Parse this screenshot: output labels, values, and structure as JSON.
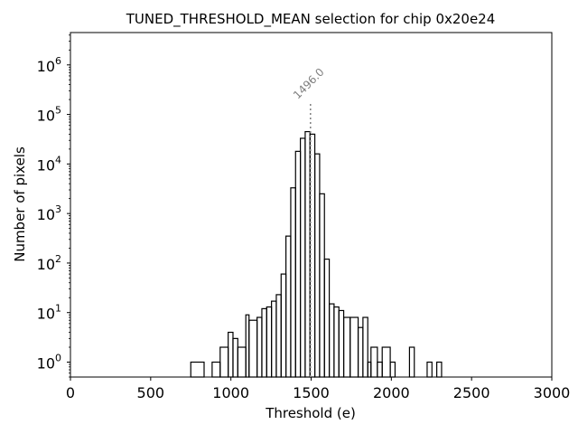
{
  "chart_data": {
    "type": "histogram",
    "title": "TUNED_THRESHOLD_MEAN selection for chip 0x20e24",
    "xlabel": "Threshold (e)",
    "ylabel": "Number of pixels",
    "xlim": [
      0,
      3000
    ],
    "ylim": [
      0.5,
      4500000
    ],
    "yscale": "log",
    "grid": false,
    "x_ticks": [
      0,
      500,
      1000,
      1500,
      2000,
      2500,
      3000
    ],
    "x_tick_labels": [
      "0",
      "500",
      "1000",
      "1500",
      "2000",
      "2500",
      "3000"
    ],
    "y_ticks": [
      1,
      10,
      100,
      1000,
      10000,
      100000,
      1000000
    ],
    "y_tick_labels": [
      {
        "base": "10",
        "exp": "0"
      },
      {
        "base": "10",
        "exp": "1"
      },
      {
        "base": "10",
        "exp": "2"
      },
      {
        "base": "10",
        "exp": "3"
      },
      {
        "base": "10",
        "exp": "4"
      },
      {
        "base": "10",
        "exp": "5"
      },
      {
        "base": "10",
        "exp": "6"
      }
    ],
    "bins": [
      {
        "x0": 750,
        "x1": 833,
        "count": 1
      },
      {
        "x0": 883,
        "x1": 933,
        "count": 1
      },
      {
        "x0": 933,
        "x1": 983,
        "count": 2
      },
      {
        "x0": 983,
        "x1": 1013,
        "count": 4
      },
      {
        "x0": 1013,
        "x1": 1043,
        "count": 3
      },
      {
        "x0": 1043,
        "x1": 1093,
        "count": 2
      },
      {
        "x0": 1093,
        "x1": 1113,
        "count": 9
      },
      {
        "x0": 1113,
        "x1": 1163,
        "count": 7
      },
      {
        "x0": 1163,
        "x1": 1193,
        "count": 8
      },
      {
        "x0": 1193,
        "x1": 1223,
        "count": 12
      },
      {
        "x0": 1223,
        "x1": 1253,
        "count": 13
      },
      {
        "x0": 1253,
        "x1": 1283,
        "count": 17
      },
      {
        "x0": 1283,
        "x1": 1313,
        "count": 23
      },
      {
        "x0": 1313,
        "x1": 1343,
        "count": 60
      },
      {
        "x0": 1343,
        "x1": 1373,
        "count": 350
      },
      {
        "x0": 1373,
        "x1": 1403,
        "count": 3300
      },
      {
        "x0": 1403,
        "x1": 1433,
        "count": 18000
      },
      {
        "x0": 1433,
        "x1": 1463,
        "count": 33000
      },
      {
        "x0": 1463,
        "x1": 1493,
        "count": 45000
      },
      {
        "x0": 1493,
        "x1": 1523,
        "count": 40000
      },
      {
        "x0": 1523,
        "x1": 1553,
        "count": 16000
      },
      {
        "x0": 1553,
        "x1": 1583,
        "count": 2500
      },
      {
        "x0": 1583,
        "x1": 1613,
        "count": 120
      },
      {
        "x0": 1613,
        "x1": 1643,
        "count": 15
      },
      {
        "x0": 1643,
        "x1": 1673,
        "count": 13
      },
      {
        "x0": 1673,
        "x1": 1703,
        "count": 11
      },
      {
        "x0": 1703,
        "x1": 1743,
        "count": 8
      },
      {
        "x0": 1743,
        "x1": 1793,
        "count": 8
      },
      {
        "x0": 1793,
        "x1": 1823,
        "count": 5
      },
      {
        "x0": 1823,
        "x1": 1853,
        "count": 8
      },
      {
        "x0": 1853,
        "x1": 1873,
        "count": 1
      },
      {
        "x0": 1873,
        "x1": 1913,
        "count": 2
      },
      {
        "x0": 1913,
        "x1": 1943,
        "count": 1
      },
      {
        "x0": 1943,
        "x1": 1993,
        "count": 2
      },
      {
        "x0": 1993,
        "x1": 2023,
        "count": 1
      },
      {
        "x0": 2113,
        "x1": 2143,
        "count": 2
      },
      {
        "x0": 2223,
        "x1": 2253,
        "count": 1
      },
      {
        "x0": 2283,
        "x1": 2313,
        "count": 1
      }
    ],
    "vline": {
      "x": 1496.0,
      "label": "1496.0",
      "color": "#808080",
      "style": "dotted"
    },
    "line_color": "#000000"
  }
}
